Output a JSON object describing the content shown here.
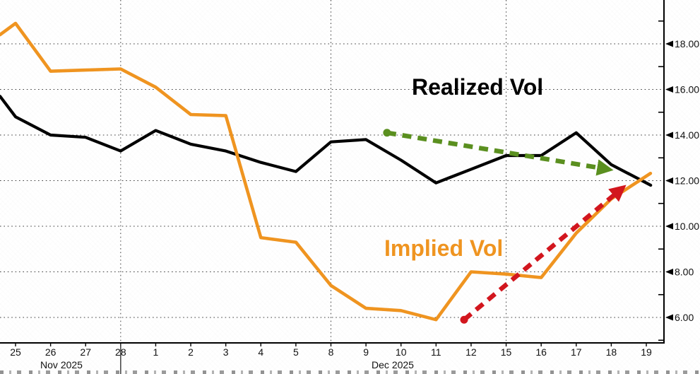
{
  "chart_data": {
    "type": "line",
    "title": "",
    "categories": [
      "25",
      "26",
      "27",
      "28",
      "1",
      "2",
      "3",
      "4",
      "5",
      "8",
      "9",
      "10",
      "11",
      "12",
      "15",
      "16",
      "17",
      "18",
      "19"
    ],
    "month_groups": [
      {
        "label": "Nov 2025",
        "span": [
          0,
          3
        ]
      },
      {
        "label": "Dec 2025",
        "span": [
          4,
          18
        ]
      }
    ],
    "series": [
      {
        "name": "Realized Vol",
        "color": "#000000",
        "left_edge": 15.7,
        "values": [
          14.8,
          14.0,
          13.9,
          13.3,
          14.2,
          13.6,
          13.3,
          12.8,
          12.4,
          13.7,
          13.8,
          12.9,
          11.9,
          12.5,
          13.1,
          13.1,
          14.1,
          12.7,
          11.9
        ]
      },
      {
        "name": "Implied Vol",
        "color": "#ef9420",
        "left_edge": 18.4,
        "values": [
          18.9,
          16.8,
          16.85,
          16.9,
          16.1,
          14.9,
          14.85,
          9.5,
          9.3,
          7.4,
          6.4,
          6.3,
          5.9,
          8.0,
          7.9,
          7.75,
          9.7,
          11.2,
          12.2
        ]
      }
    ],
    "y_axis": {
      "side": "right",
      "ylim": [
        4.9,
        19.35
      ],
      "major_ticks": [
        6,
        8,
        10,
        12,
        14,
        16,
        18
      ],
      "labels": [
        "6.00",
        "8.00",
        "10.00",
        "12.00",
        "14.00",
        "16.00",
        "18.00"
      ],
      "minor_ticks": [
        5,
        7,
        9,
        11,
        13,
        15,
        17,
        19
      ],
      "grid": "dotted"
    },
    "x_gridline_categories": [
      "28",
      "8",
      "15"
    ],
    "annotations": {
      "realized_label": {
        "text": "Realized Vol",
        "color": "#000000"
      },
      "implied_label": {
        "text": "Implied Vol",
        "color": "#ef9420"
      },
      "green_arrow": {
        "color": "#5a8f1f",
        "style": "dashed",
        "start_dot": true,
        "from": {
          "day_index": 10.6,
          "value": 14.1
        },
        "to": {
          "day_index": 16.9,
          "value": 12.5
        }
      },
      "red_arrow": {
        "color": "#d2161e",
        "style": "dashed",
        "start_dot": true,
        "from": {
          "day_index": 12.8,
          "value": 5.9
        },
        "to": {
          "day_index": 17.3,
          "value": 11.65
        }
      }
    },
    "grid_color": "#3f3f3f",
    "axis_color": "#000000"
  }
}
